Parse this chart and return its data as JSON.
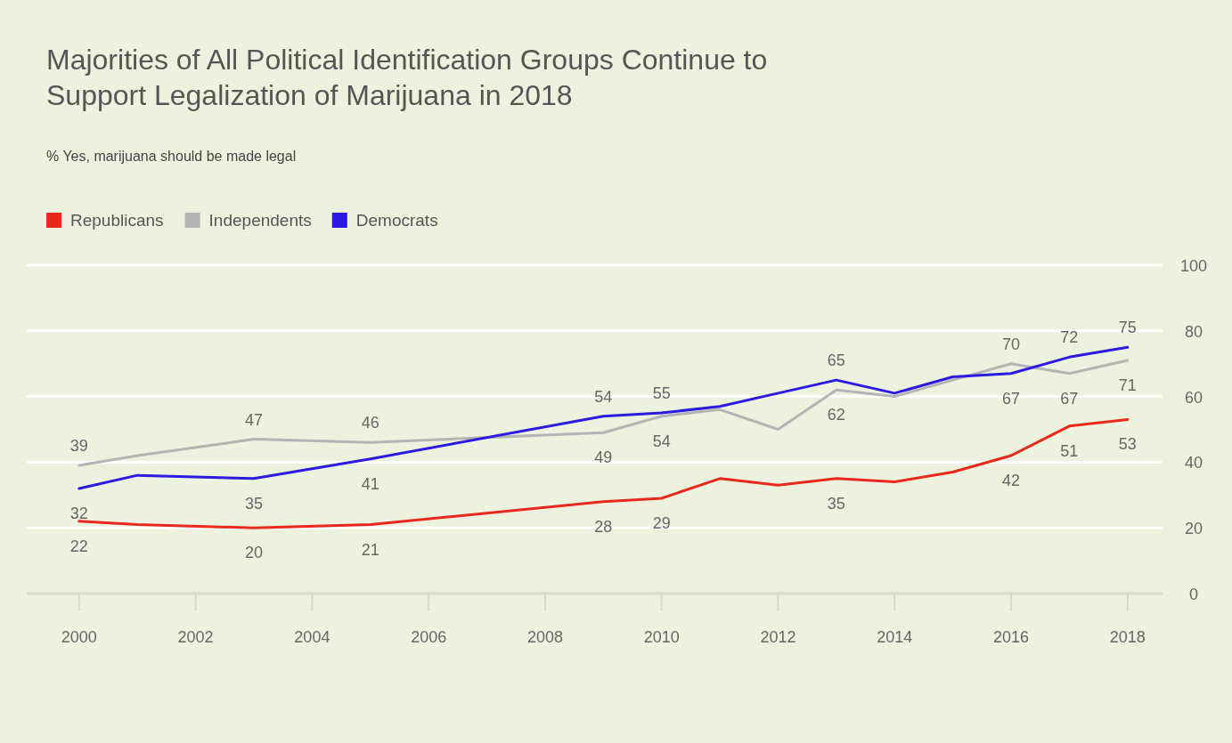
{
  "chart_data": {
    "type": "line",
    "title": "Majorities of All Political Identification Groups Continue to Support Legalization of Marijuana in 2018",
    "subtitle": "% Yes, marijuana should be made legal",
    "x": [
      2000,
      2001,
      2003,
      2005,
      2009,
      2010,
      2011,
      2012,
      2013,
      2014,
      2015,
      2016,
      2017,
      2018
    ],
    "series": [
      {
        "name": "Republicans",
        "color": "#e8291c",
        "values": [
          22,
          21,
          20,
          21,
          28,
          29,
          35,
          33,
          35,
          34,
          37,
          42,
          51,
          53
        ],
        "value_labels": [
          "22",
          null,
          "20",
          "21",
          "28",
          "29",
          null,
          null,
          "35",
          null,
          null,
          "42",
          "51",
          "53"
        ]
      },
      {
        "name": "Independents",
        "color": "#b4b4b4",
        "values": [
          39,
          42,
          47,
          46,
          49,
          54,
          56,
          50,
          62,
          60,
          65,
          70,
          67,
          71
        ],
        "value_labels": [
          "39",
          null,
          "47",
          "46",
          "49",
          "54",
          null,
          null,
          "62",
          null,
          null,
          "70",
          "67",
          "71"
        ]
      },
      {
        "name": "Democrats",
        "color": "#2b1ae0",
        "values": [
          32,
          36,
          35,
          41,
          54,
          55,
          57,
          61,
          65,
          61,
          66,
          67,
          72,
          75
        ],
        "value_labels": [
          "32",
          null,
          "35",
          "41",
          "54",
          "55",
          null,
          null,
          "65",
          null,
          null,
          "67",
          "72",
          "75"
        ]
      }
    ],
    "xlim": [
      1999.1,
      2018.6
    ],
    "xticks": [
      2000,
      2002,
      2004,
      2006,
      2008,
      2010,
      2012,
      2014,
      2016,
      2018
    ],
    "ylim": [
      0,
      100
    ],
    "yticks": [
      0,
      20,
      40,
      60,
      80,
      100
    ],
    "grid": "y",
    "legend": "top left",
    "marker": "none",
    "line_style": "solid"
  }
}
